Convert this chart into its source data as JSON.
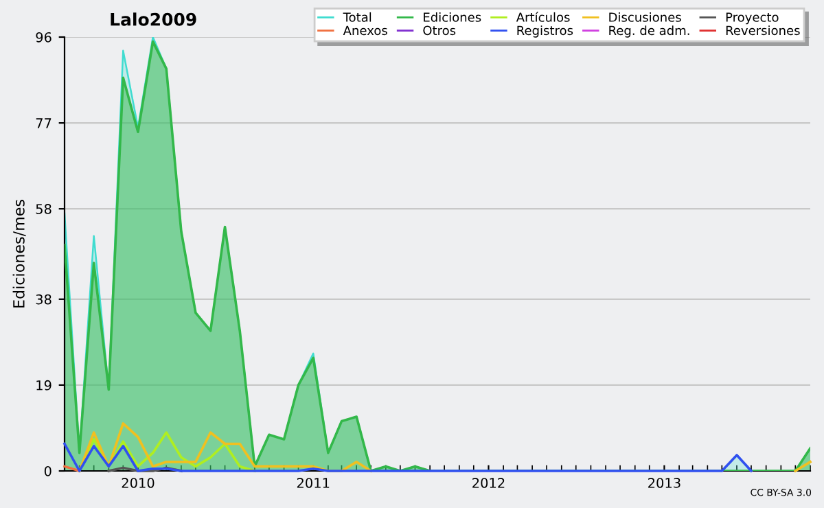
{
  "chart_data": {
    "type": "line",
    "title": "Lalo2009",
    "ylabel": "Ediciones/mes",
    "x": [
      "2009-08",
      "2009-09",
      "2009-10",
      "2009-11",
      "2009-12",
      "2010-01",
      "2010-02",
      "2010-03",
      "2010-04",
      "2010-05",
      "2010-06",
      "2010-07",
      "2010-08",
      "2010-09",
      "2010-10",
      "2010-11",
      "2010-12",
      "2011-01",
      "2011-02",
      "2011-03",
      "2011-04",
      "2011-05",
      "2011-06",
      "2011-07",
      "2011-08",
      "2011-09",
      "2011-10",
      "2011-11",
      "2011-12",
      "2012-01",
      "2012-02",
      "2012-03",
      "2012-04",
      "2012-05",
      "2012-06",
      "2012-07",
      "2012-08",
      "2012-09",
      "2012-10",
      "2012-11",
      "2012-12",
      "2013-01",
      "2013-02",
      "2013-03",
      "2013-04",
      "2013-05",
      "2013-06",
      "2013-07",
      "2013-08",
      "2013-09",
      "2013-10",
      "2013-11"
    ],
    "series": [
      {
        "name": "Total",
        "color": "#40dcd0",
        "type": "area",
        "values": [
          57,
          4,
          52,
          18,
          93,
          76,
          96,
          89,
          53,
          35,
          31,
          54,
          31,
          1,
          8,
          7,
          19,
          26,
          4,
          11,
          12,
          0,
          1,
          0,
          1,
          0,
          0,
          0,
          0,
          0,
          0,
          0,
          0,
          0,
          0,
          0,
          0,
          0,
          0,
          0,
          0,
          0,
          0,
          0,
          0,
          0,
          3.5,
          0,
          0,
          0,
          0,
          5
        ]
      },
      {
        "name": "Ediciones",
        "color": "#33b84a",
        "type": "area",
        "values": [
          50,
          4,
          46,
          18,
          87,
          75,
          95,
          89,
          53,
          35,
          31,
          54,
          31,
          1,
          8,
          7,
          19,
          25,
          4,
          11,
          12,
          0,
          1,
          0,
          1,
          0,
          0,
          0,
          0,
          0,
          0,
          0,
          0,
          0,
          0,
          0,
          0,
          0,
          0,
          0,
          0,
          0,
          0,
          0,
          0,
          0,
          0,
          0,
          0,
          0,
          0,
          5
        ]
      },
      {
        "name": "Artículos",
        "color": "#b0ee20",
        "values": [
          null,
          0,
          7,
          1,
          6.5,
          1,
          4,
          8.5,
          3,
          1,
          3,
          6,
          1,
          0,
          null,
          null,
          null,
          null,
          null,
          null,
          null,
          null,
          null,
          null,
          null,
          null,
          null,
          null,
          null,
          null,
          null,
          null,
          null,
          null,
          null,
          null,
          null,
          null,
          null,
          null,
          null,
          null,
          null,
          null,
          null,
          null,
          null,
          null,
          null,
          null,
          null,
          null
        ]
      },
      {
        "name": "Discusiones",
        "color": "#f0c020",
        "values": [
          null,
          0,
          8.5,
          1,
          10.5,
          7.5,
          1,
          2,
          2,
          2,
          8.5,
          6,
          6,
          1,
          1,
          1,
          1,
          1,
          0,
          0,
          2,
          0,
          null,
          null,
          null,
          null,
          null,
          null,
          null,
          null,
          null,
          null,
          null,
          null,
          null,
          null,
          null,
          null,
          null,
          null,
          null,
          null,
          null,
          null,
          null,
          null,
          null,
          null,
          null,
          null,
          0,
          2
        ]
      },
      {
        "name": "Proyecto",
        "color": "#555555",
        "values": [
          null,
          null,
          null,
          0,
          0.7,
          0,
          0,
          0.7,
          0,
          null,
          null,
          null,
          null,
          null,
          null,
          null,
          null,
          null,
          null,
          null,
          null,
          null,
          null,
          null,
          null,
          null,
          null,
          null,
          null,
          null,
          null,
          null,
          null,
          null,
          null,
          null,
          null,
          null,
          null,
          null,
          null,
          null,
          null,
          null,
          null,
          null,
          null,
          null,
          null,
          null,
          null,
          null
        ]
      },
      {
        "name": "Anexos",
        "color": "#f07040",
        "values": [
          1,
          0,
          null,
          null,
          null,
          null,
          null,
          null,
          null,
          null,
          null,
          null,
          null,
          null,
          null,
          null,
          null,
          null,
          null,
          null,
          null,
          null,
          null,
          null,
          null,
          null,
          null,
          null,
          null,
          null,
          null,
          null,
          null,
          null,
          null,
          null,
          null,
          null,
          null,
          null,
          null,
          null,
          null,
          null,
          null,
          null,
          null,
          null,
          null,
          null,
          null,
          null
        ]
      },
      {
        "name": "Otros",
        "color": "#8030d0",
        "values": [
          null,
          null,
          null,
          null,
          null,
          null,
          null,
          null,
          null,
          null,
          null,
          null,
          null,
          null,
          null,
          null,
          null,
          null,
          null,
          null,
          null,
          null,
          null,
          null,
          null,
          null,
          null,
          null,
          null,
          null,
          null,
          null,
          null,
          null,
          null,
          null,
          null,
          null,
          null,
          null,
          null,
          null,
          null,
          null,
          null,
          null,
          null,
          null,
          null,
          null,
          null,
          null
        ]
      },
      {
        "name": "Registros",
        "color": "#3050f0",
        "values": [
          6,
          0,
          5.5,
          1,
          5.5,
          0,
          0.5,
          0.5,
          0,
          0,
          0,
          0,
          0,
          0,
          0,
          0,
          0,
          0.5,
          0,
          0,
          0,
          0,
          0,
          0,
          0,
          0,
          0,
          0,
          0,
          0,
          0,
          0,
          0,
          0,
          0,
          0,
          0,
          0,
          0,
          0,
          0,
          0,
          0,
          0,
          0,
          0,
          3.5,
          0,
          null,
          null,
          null,
          null
        ]
      },
      {
        "name": "Reg. de adm.",
        "color": "#d040e0",
        "values": [
          null,
          null,
          null,
          null,
          null,
          null,
          null,
          null,
          null,
          null,
          null,
          null,
          null,
          null,
          null,
          null,
          null,
          null,
          null,
          null,
          null,
          null,
          null,
          null,
          null,
          null,
          null,
          null,
          null,
          null,
          null,
          null,
          null,
          null,
          null,
          null,
          null,
          null,
          null,
          null,
          null,
          null,
          null,
          null,
          null,
          null,
          null,
          null,
          null,
          null,
          null,
          null
        ]
      },
      {
        "name": "Reversiones",
        "color": "#e03030",
        "values": [
          null,
          null,
          null,
          null,
          null,
          null,
          null,
          null,
          null,
          null,
          null,
          null,
          null,
          null,
          null,
          null,
          null,
          null,
          null,
          null,
          null,
          null,
          null,
          null,
          null,
          null,
          null,
          null,
          null,
          null,
          null,
          null,
          null,
          null,
          null,
          null,
          null,
          null,
          null,
          null,
          null,
          null,
          null,
          null,
          null,
          null,
          null,
          null,
          null,
          null,
          null,
          null
        ]
      }
    ],
    "xlim": [
      "2009-08",
      "2013-11"
    ],
    "xticks": [
      {
        "value": "2010-01",
        "label": "2010"
      },
      {
        "value": "2011-01",
        "label": "2011"
      },
      {
        "value": "2012-01",
        "label": "2012"
      },
      {
        "value": "2013-01",
        "label": "2013"
      }
    ],
    "ylim": [
      0,
      96
    ],
    "yticks": [
      0,
      19,
      38,
      58,
      77,
      96
    ],
    "grid": "y",
    "legend": "top right",
    "marker": "none",
    "line_style": "solid",
    "annotations": [
      "CC BY-SA 3.0"
    ]
  }
}
